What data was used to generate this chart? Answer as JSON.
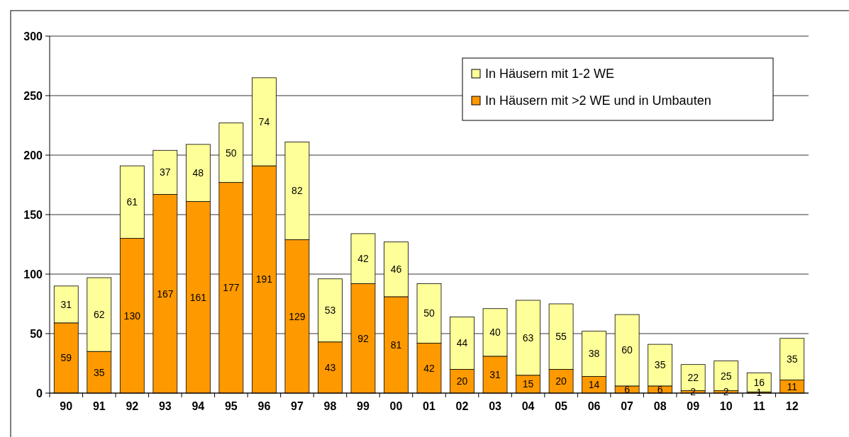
{
  "chart_data": {
    "type": "bar",
    "stacked": true,
    "categories": [
      "90",
      "91",
      "92",
      "93",
      "94",
      "95",
      "96",
      "97",
      "98",
      "99",
      "00",
      "01",
      "02",
      "03",
      "04",
      "05",
      "06",
      "07",
      "08",
      "09",
      "10",
      "11",
      "12"
    ],
    "series": [
      {
        "name": "In Häusern mit >2 WE und in Umbauten",
        "color": "#ff9900",
        "values": [
          59,
          35,
          130,
          167,
          161,
          177,
          191,
          129,
          43,
          92,
          81,
          42,
          20,
          31,
          15,
          20,
          14,
          6,
          6,
          2,
          2,
          1,
          11
        ]
      },
      {
        "name": "In Häusern mit 1-2 WE",
        "color": "#ffff99",
        "values": [
          31,
          62,
          61,
          37,
          48,
          50,
          74,
          82,
          53,
          42,
          46,
          50,
          44,
          40,
          63,
          55,
          38,
          60,
          35,
          22,
          25,
          16,
          35
        ]
      }
    ],
    "ylim": [
      0,
      300
    ],
    "yticks": [
      0,
      50,
      100,
      150,
      200,
      250,
      300
    ],
    "grid": "y",
    "legend": "top right",
    "data_labels": true
  }
}
